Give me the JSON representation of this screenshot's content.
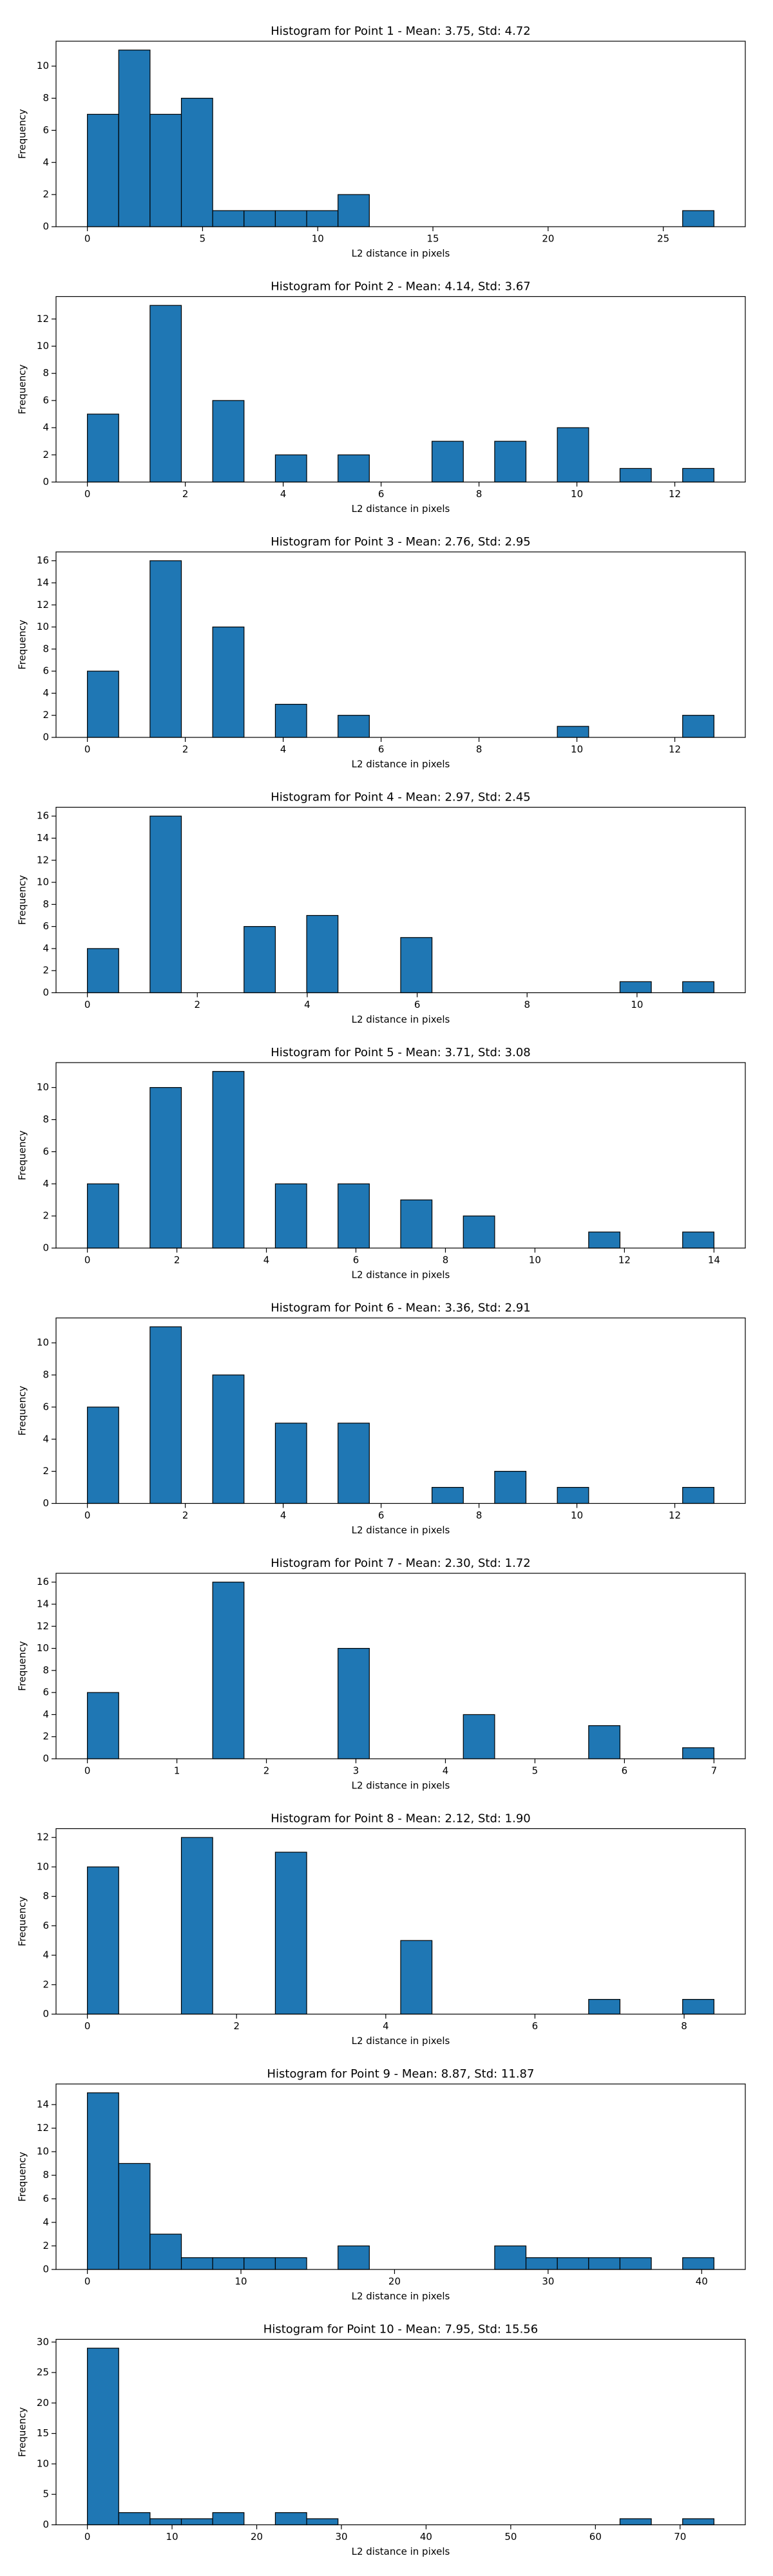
{
  "chart_data": [
    {
      "type": "histogram",
      "title": "Histogram for Point 1 - Mean: 3.75, Std: 4.72",
      "xlabel": "L2 distance in pixels",
      "ylabel": "Frequency",
      "color": "#1f77b4",
      "edgecolor": "#000000",
      "bins": [
        0,
        1.36,
        2.72,
        4.08,
        5.44,
        6.8,
        8.16,
        9.52,
        10.88,
        12.24,
        13.6,
        14.96,
        16.32,
        17.68,
        19.04,
        20.4,
        21.76,
        23.12,
        24.48,
        25.84,
        27.2
      ],
      "values": [
        7,
        11,
        7,
        8,
        1,
        1,
        1,
        1,
        2,
        0,
        0,
        0,
        0,
        0,
        0,
        0,
        0,
        0,
        0,
        1
      ],
      "xlim": [
        -1.36,
        28.56
      ],
      "xticks": [
        0,
        5,
        10,
        15,
        20,
        25
      ],
      "ylim": [
        0,
        11.55
      ],
      "yticks": [
        0,
        2,
        4,
        6,
        8,
        10
      ]
    },
    {
      "type": "histogram",
      "title": "Histogram for Point 2 - Mean: 4.14, Std: 3.67",
      "xlabel": "L2 distance in pixels",
      "ylabel": "Frequency",
      "color": "#1f77b4",
      "edgecolor": "#000000",
      "bins": [
        0,
        0.64,
        1.28,
        1.92,
        2.56,
        3.2,
        3.84,
        4.48,
        5.12,
        5.76,
        6.4,
        7.04,
        7.68,
        8.32,
        8.96,
        9.6,
        10.24,
        10.88,
        11.52,
        12.16,
        12.8
      ],
      "values": [
        5,
        0,
        13,
        0,
        6,
        0,
        2,
        0,
        2,
        0,
        0,
        3,
        0,
        3,
        0,
        4,
        0,
        1,
        0,
        1
      ],
      "xlim": [
        -0.64,
        13.44
      ],
      "xticks": [
        0,
        2,
        4,
        6,
        8,
        10,
        12
      ],
      "ylim": [
        0,
        13.65
      ],
      "yticks": [
        0,
        2,
        4,
        6,
        8,
        10,
        12
      ]
    },
    {
      "type": "histogram",
      "title": "Histogram for Point 3 - Mean: 2.76, Std: 2.95",
      "xlabel": "L2 distance in pixels",
      "ylabel": "Frequency",
      "color": "#1f77b4",
      "edgecolor": "#000000",
      "bins": [
        0,
        0.64,
        1.28,
        1.92,
        2.56,
        3.2,
        3.84,
        4.48,
        5.12,
        5.76,
        6.4,
        7.04,
        7.68,
        8.32,
        8.96,
        9.6,
        10.24,
        10.88,
        11.52,
        12.16,
        12.8
      ],
      "values": [
        6,
        0,
        16,
        0,
        10,
        0,
        3,
        0,
        2,
        0,
        0,
        0,
        0,
        0,
        0,
        1,
        0,
        0,
        0,
        2
      ],
      "xlim": [
        -0.64,
        13.44
      ],
      "xticks": [
        0,
        2,
        4,
        6,
        8,
        10,
        12
      ],
      "ylim": [
        0,
        16.8
      ],
      "yticks": [
        0,
        2,
        4,
        6,
        8,
        10,
        12,
        14,
        16
      ]
    },
    {
      "type": "histogram",
      "title": "Histogram for Point 4 - Mean: 2.97, Std: 2.45",
      "xlabel": "L2 distance in pixels",
      "ylabel": "Frequency",
      "color": "#1f77b4",
      "edgecolor": "#000000",
      "bins": [
        0,
        0.57,
        1.14,
        1.71,
        2.28,
        2.85,
        3.42,
        3.99,
        4.56,
        5.13,
        5.7,
        6.27,
        6.84,
        7.41,
        7.98,
        8.55,
        9.12,
        9.69,
        10.26,
        10.83,
        11.4
      ],
      "values": [
        4,
        0,
        16,
        0,
        0,
        6,
        0,
        7,
        0,
        0,
        5,
        0,
        0,
        0,
        0,
        0,
        0,
        1,
        0,
        1
      ],
      "xlim": [
        -0.57,
        11.97
      ],
      "xticks": [
        0,
        2,
        4,
        6,
        8,
        10
      ],
      "ylim": [
        0,
        16.8
      ],
      "yticks": [
        0,
        2,
        4,
        6,
        8,
        10,
        12,
        14,
        16
      ]
    },
    {
      "type": "histogram",
      "title": "Histogram for Point 5 - Mean: 3.71, Std: 3.08",
      "xlabel": "L2 distance in pixels",
      "ylabel": "Frequency",
      "color": "#1f77b4",
      "edgecolor": "#000000",
      "bins": [
        0,
        0.7,
        1.4,
        2.1,
        2.8,
        3.5,
        4.2,
        4.9,
        5.6,
        6.3,
        7,
        7.7,
        8.4,
        9.1,
        9.8,
        10.5,
        11.2,
        11.9,
        12.6,
        13.3,
        14
      ],
      "values": [
        4,
        0,
        10,
        0,
        11,
        0,
        4,
        0,
        4,
        0,
        3,
        0,
        2,
        0,
        0,
        0,
        1,
        0,
        0,
        1
      ],
      "xlim": [
        -0.7,
        14.7
      ],
      "xticks": [
        0,
        2,
        4,
        6,
        8,
        10,
        12,
        14
      ],
      "ylim": [
        0,
        11.55
      ],
      "yticks": [
        0,
        2,
        4,
        6,
        8,
        10
      ]
    },
    {
      "type": "histogram",
      "title": "Histogram for Point 6 - Mean: 3.36, Std: 2.91",
      "xlabel": "L2 distance in pixels",
      "ylabel": "Frequency",
      "color": "#1f77b4",
      "edgecolor": "#000000",
      "bins": [
        0,
        0.64,
        1.28,
        1.92,
        2.56,
        3.2,
        3.84,
        4.48,
        5.12,
        5.76,
        6.4,
        7.04,
        7.68,
        8.32,
        8.96,
        9.6,
        10.24,
        10.88,
        11.52,
        12.16,
        12.8
      ],
      "values": [
        6,
        0,
        11,
        0,
        8,
        0,
        5,
        0,
        5,
        0,
        0,
        1,
        0,
        2,
        0,
        1,
        0,
        0,
        0,
        1
      ],
      "xlim": [
        -0.64,
        13.44
      ],
      "xticks": [
        0,
        2,
        4,
        6,
        8,
        10,
        12
      ],
      "ylim": [
        0,
        11.55
      ],
      "yticks": [
        0,
        2,
        4,
        6,
        8,
        10
      ]
    },
    {
      "type": "histogram",
      "title": "Histogram for Point 7 - Mean: 2.30, Std: 1.72",
      "xlabel": "L2 distance in pixels",
      "ylabel": "Frequency",
      "color": "#1f77b4",
      "edgecolor": "#000000",
      "bins": [
        0,
        0.35,
        0.7,
        1.05,
        1.4,
        1.75,
        2.1,
        2.45,
        2.8,
        3.15,
        3.5,
        3.85,
        4.2,
        4.55,
        4.9,
        5.25,
        5.6,
        5.95,
        6.3,
        6.65,
        7
      ],
      "values": [
        6,
        0,
        0,
        0,
        16,
        0,
        0,
        0,
        10,
        0,
        0,
        0,
        4,
        0,
        0,
        0,
        3,
        0,
        0,
        1
      ],
      "xlim": [
        -0.35,
        7.35
      ],
      "xticks": [
        0,
        1,
        2,
        3,
        4,
        5,
        6,
        7
      ],
      "ylim": [
        0,
        16.8
      ],
      "yticks": [
        0,
        2,
        4,
        6,
        8,
        10,
        12,
        14,
        16
      ]
    },
    {
      "type": "histogram",
      "title": "Histogram for Point 8 - Mean: 2.12, Std: 1.90",
      "xlabel": "L2 distance in pixels",
      "ylabel": "Frequency",
      "color": "#1f77b4",
      "edgecolor": "#000000",
      "bins": [
        0,
        0.42,
        0.84,
        1.26,
        1.68,
        2.1,
        2.52,
        2.94,
        3.36,
        3.78,
        4.2,
        4.62,
        5.04,
        5.46,
        5.88,
        6.3,
        6.72,
        7.14,
        7.56,
        7.98,
        8.4
      ],
      "values": [
        10,
        0,
        0,
        12,
        0,
        0,
        11,
        0,
        0,
        0,
        5,
        0,
        0,
        0,
        0,
        0,
        1,
        0,
        0,
        1
      ],
      "xlim": [
        -0.42,
        8.82
      ],
      "xticks": [
        0,
        2,
        4,
        6,
        8
      ],
      "ylim": [
        0,
        12.6
      ],
      "yticks": [
        0,
        2,
        4,
        6,
        8,
        10,
        12
      ]
    },
    {
      "type": "histogram",
      "title": "Histogram for Point 9 - Mean: 8.87, Std: 11.87",
      "xlabel": "L2 distance in pixels",
      "ylabel": "Frequency",
      "color": "#1f77b4",
      "edgecolor": "#000000",
      "bins": [
        0,
        2.04,
        4.08,
        6.12,
        8.16,
        10.2,
        12.24,
        14.28,
        16.32,
        18.36,
        20.4,
        22.44,
        24.48,
        26.52,
        28.56,
        30.6,
        32.64,
        34.68,
        36.72,
        38.76,
        40.8
      ],
      "values": [
        15,
        9,
        3,
        1,
        1,
        1,
        1,
        0,
        2,
        0,
        0,
        0,
        0,
        2,
        1,
        1,
        1,
        1,
        0,
        1
      ],
      "xlim": [
        -2.04,
        42.84
      ],
      "xticks": [
        0,
        10,
        20,
        30,
        40
      ],
      "ylim": [
        0,
        15.75
      ],
      "yticks": [
        0,
        2,
        4,
        6,
        8,
        10,
        12,
        14
      ]
    },
    {
      "type": "histogram",
      "title": "Histogram for Point 10 - Mean: 7.95, Std: 15.56",
      "xlabel": "L2 distance in pixels",
      "ylabel": "Frequency",
      "color": "#1f77b4",
      "edgecolor": "#000000",
      "bins": [
        0,
        3.7,
        7.4,
        11.1,
        14.8,
        18.5,
        22.2,
        25.9,
        29.6,
        33.3,
        37,
        40.7,
        44.4,
        48.1,
        51.8,
        55.5,
        59.2,
        62.9,
        66.6,
        70.3,
        74
      ],
      "values": [
        29,
        2,
        1,
        1,
        2,
        0,
        2,
        1,
        0,
        0,
        0,
        0,
        0,
        0,
        0,
        0,
        0,
        1,
        0,
        1
      ],
      "xlim": [
        -3.7,
        77.7
      ],
      "xticks": [
        0,
        10,
        20,
        30,
        40,
        50,
        60,
        70
      ],
      "ylim": [
        0,
        30.45
      ],
      "yticks": [
        0,
        5,
        10,
        15,
        20,
        25,
        30
      ]
    }
  ]
}
